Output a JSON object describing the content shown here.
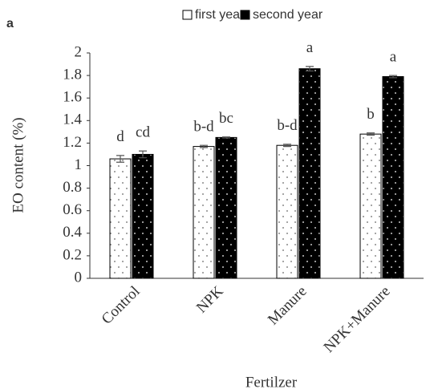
{
  "panel_label": "a",
  "chart_data": {
    "type": "bar",
    "x_label": "Fertilzer",
    "y_label": "EO content (%)",
    "categories": [
      "Control",
      "NPK",
      "Manure",
      "NPK+Manure"
    ],
    "series": [
      {
        "name": "first year",
        "color": "#ffffff",
        "values": [
          1.06,
          1.17,
          1.18,
          1.28
        ],
        "errors": [
          0.03,
          0.01,
          0.01,
          0.01
        ],
        "letters": [
          "d",
          "b-d",
          "b-d",
          "b"
        ]
      },
      {
        "name": "second year",
        "color": "#000000",
        "values": [
          1.1,
          1.25,
          1.86,
          1.79
        ],
        "errors": [
          0.03,
          0.005,
          0.02,
          0.01
        ],
        "letters": [
          "cd",
          "bc",
          "a",
          "a"
        ]
      }
    ],
    "ylim": [
      0,
      2
    ],
    "yticks": [
      0,
      0.2,
      0.4,
      0.6,
      0.8,
      1,
      1.2,
      1.4,
      1.6,
      1.8,
      2
    ],
    "legend": "top"
  }
}
